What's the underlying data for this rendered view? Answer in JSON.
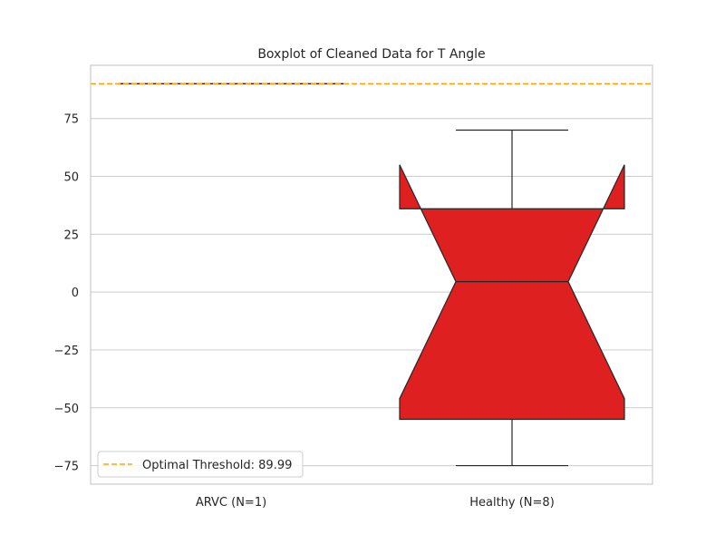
{
  "chart_data": {
    "type": "boxplot",
    "title": "Boxplot of Cleaned Data for T Angle",
    "xlabel": "",
    "ylabel": "",
    "ylim": [
      -83,
      98
    ],
    "y_ticks": [
      75,
      50,
      25,
      0,
      -25,
      -50,
      -75
    ],
    "y_tick_labels": [
      "75",
      "50",
      "25",
      "0",
      "−25",
      "−50",
      "−75"
    ],
    "grid": "horizontal",
    "notched": true,
    "box_color": "#de2020",
    "edge_color": "#262626",
    "categories": [
      "ARVC (N=1)",
      "Healthy (N=8)"
    ],
    "boxes": [
      {
        "category": "ARVC (N=1)",
        "min": 90,
        "q1": 90,
        "median": 90,
        "q3": 90,
        "max": 90,
        "notch_low": 90,
        "notch_high": 90
      },
      {
        "category": "Healthy (N=8)",
        "min": -75,
        "q1": -55,
        "median": 4.5,
        "q3": 36,
        "max": 70,
        "notch_low": -46,
        "notch_high": 55
      }
    ],
    "threshold": {
      "value": 89.99,
      "label": "Optimal Threshold: 89.99",
      "color": "#ffa500",
      "style": "dashed"
    },
    "legend": {
      "position": "lower-left",
      "entries": [
        "Optimal Threshold: 89.99"
      ]
    }
  }
}
